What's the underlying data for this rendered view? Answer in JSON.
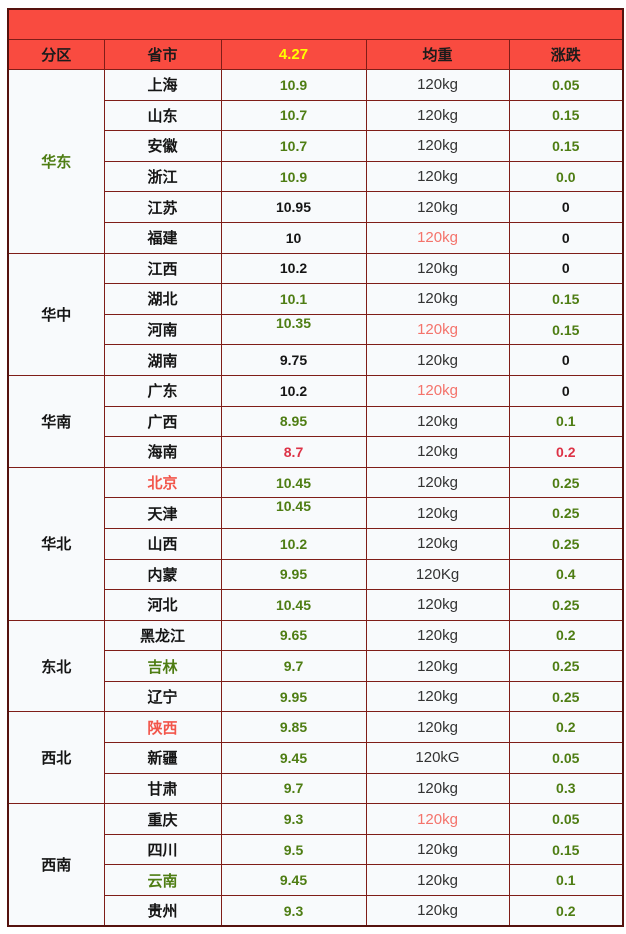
{
  "banner": {
    "text": ""
  },
  "colors": {
    "header_bg": "#f94b40",
    "header_date": "#ffff00",
    "border": "#7f1d18",
    "outer_border": "#55120e",
    "row_bg": "#f8fafc",
    "green": "#4e7d13",
    "black": "#151515",
    "dark": "#333333",
    "red": "#dd3246",
    "tomato": "#f2564b",
    "salmon": "#f4736b"
  },
  "table": {
    "columns": [
      {
        "label": "分区"
      },
      {
        "label": "省市"
      },
      {
        "label": "4.27"
      },
      {
        "label": "均重"
      },
      {
        "label": "涨跌"
      }
    ],
    "groups": [
      {
        "region": "华东",
        "region_color": "green",
        "rows": [
          {
            "province": "上海",
            "province_color": "black",
            "price": "10.9",
            "price_color": "green",
            "weight": "120kg",
            "weight_color": "dark",
            "change": "0.05",
            "change_color": "green"
          },
          {
            "province": "山东",
            "province_color": "black",
            "price": "10.7",
            "price_color": "green",
            "weight": "120kg",
            "weight_color": "dark",
            "change": "0.15",
            "change_color": "green"
          },
          {
            "province": "安徽",
            "province_color": "black",
            "price": "10.7",
            "price_color": "green",
            "weight": "120kg",
            "weight_color": "dark",
            "change": "0.15",
            "change_color": "green"
          },
          {
            "province": "浙江",
            "province_color": "black",
            "price": "10.9",
            "price_color": "green",
            "weight": "120kg",
            "weight_color": "dark",
            "change": "0.0",
            "change_color": "green"
          },
          {
            "province": "江苏",
            "province_color": "black",
            "price": "10.95",
            "price_color": "black",
            "weight": "120kg",
            "weight_color": "dark",
            "change": "0",
            "change_color": "black"
          },
          {
            "province": "福建",
            "province_color": "black",
            "price": "10",
            "price_color": "black",
            "weight": "120kg",
            "weight_color": "salmon",
            "change": "0",
            "change_color": "black"
          }
        ]
      },
      {
        "region": "华中",
        "region_color": "black",
        "rows": [
          {
            "province": "江西",
            "province_color": "black",
            "price": "10.2",
            "price_color": "black",
            "weight": "120kg",
            "weight_color": "dark",
            "change": "0",
            "change_color": "black"
          },
          {
            "province": "湖北",
            "province_color": "black",
            "price": "10.1",
            "price_color": "green",
            "weight": "120kg",
            "weight_color": "dark",
            "change": "0.15",
            "change_color": "green"
          },
          {
            "province": "河南",
            "province_color": "black",
            "price": "10.35",
            "price_color": "green",
            "weight": "120kg",
            "weight_color": "salmon",
            "change": "0.15",
            "change_color": "green",
            "raised": true
          },
          {
            "province": "湖南",
            "province_color": "black",
            "price": "9.75",
            "price_color": "black",
            "weight": "120kg",
            "weight_color": "dark",
            "change": "0",
            "change_color": "black"
          }
        ]
      },
      {
        "region": "华南",
        "region_color": "black",
        "rows": [
          {
            "province": "广东",
            "province_color": "black",
            "price": "10.2",
            "price_color": "black",
            "weight": "120kg",
            "weight_color": "salmon",
            "change": "0",
            "change_color": "black"
          },
          {
            "province": "广西",
            "province_color": "black",
            "price": "8.95",
            "price_color": "green",
            "weight": "120kg",
            "weight_color": "dark",
            "change": "0.1",
            "change_color": "green"
          },
          {
            "province": "海南",
            "province_color": "black",
            "price": "8.7",
            "price_color": "red",
            "weight": "120kg",
            "weight_color": "dark",
            "change": "0.2",
            "change_color": "red"
          }
        ]
      },
      {
        "region": "华北",
        "region_color": "black",
        "rows": [
          {
            "province": "北京",
            "province_color": "tomato",
            "price": "10.45",
            "price_color": "green",
            "weight": "120kg",
            "weight_color": "dark",
            "change": "0.25",
            "change_color": "green"
          },
          {
            "province": "天津",
            "province_color": "black",
            "price": "10.45",
            "price_color": "green",
            "weight": "120kg",
            "weight_color": "dark",
            "change": "0.25",
            "change_color": "green",
            "raised": true
          },
          {
            "province": "山西",
            "province_color": "black",
            "price": "10.2",
            "price_color": "green",
            "weight": "120kg",
            "weight_color": "dark",
            "change": "0.25",
            "change_color": "green"
          },
          {
            "province": "内蒙",
            "province_color": "black",
            "price": "9.95",
            "price_color": "green",
            "weight": "120Kg",
            "weight_color": "dark",
            "change": "0.4",
            "change_color": "green"
          },
          {
            "province": "河北",
            "province_color": "black",
            "price": "10.45",
            "price_color": "green",
            "weight": "120kg",
            "weight_color": "dark",
            "change": "0.25",
            "change_color": "green"
          }
        ]
      },
      {
        "region": "东北",
        "region_color": "black",
        "rows": [
          {
            "province": "黑龙江",
            "province_color": "black",
            "price": "9.65",
            "price_color": "green",
            "weight": "120kg",
            "weight_color": "dark",
            "change": "0.2",
            "change_color": "green"
          },
          {
            "province": "吉林",
            "province_color": "green",
            "price": "9.7",
            "price_color": "green",
            "weight": "120kg",
            "weight_color": "dark",
            "change": "0.25",
            "change_color": "green"
          },
          {
            "province": "辽宁",
            "province_color": "black",
            "price": "9.95",
            "price_color": "green",
            "weight": "120kg",
            "weight_color": "dark",
            "change": "0.25",
            "change_color": "green"
          }
        ]
      },
      {
        "region": "西北",
        "region_color": "black",
        "rows": [
          {
            "province": "陕西",
            "province_color": "tomato",
            "price": "9.85",
            "price_color": "green",
            "weight": "120kg",
            "weight_color": "dark",
            "change": "0.2",
            "change_color": "green"
          },
          {
            "province": "新疆",
            "province_color": "black",
            "price": "9.45",
            "price_color": "green",
            "weight": "120kG",
            "weight_color": "dark",
            "change": "0.05",
            "change_color": "green"
          },
          {
            "province": "甘肃",
            "province_color": "black",
            "price": "9.7",
            "price_color": "green",
            "weight": "120kg",
            "weight_color": "dark",
            "change": "0.3",
            "change_color": "green"
          }
        ]
      },
      {
        "region": "西南",
        "region_color": "black",
        "rows": [
          {
            "province": "重庆",
            "province_color": "black",
            "price": "9.3",
            "price_color": "green",
            "weight": "120kg",
            "weight_color": "salmon",
            "change": "0.05",
            "change_color": "green"
          },
          {
            "province": "四川",
            "province_color": "black",
            "price": "9.5",
            "price_color": "green",
            "weight": "120kg",
            "weight_color": "dark",
            "change": "0.15",
            "change_color": "green"
          },
          {
            "province": "云南",
            "province_color": "green",
            "price": "9.45",
            "price_color": "green",
            "weight": "120kg",
            "weight_color": "dark",
            "change": "0.1",
            "change_color": "green"
          },
          {
            "province": "贵州",
            "province_color": "black",
            "price": "9.3",
            "price_color": "green",
            "weight": "120kg",
            "weight_color": "dark",
            "change": "0.2",
            "change_color": "green"
          }
        ]
      }
    ]
  },
  "chart_data": {
    "type": "table",
    "title": "",
    "columns": [
      "分区",
      "省市",
      "4.27",
      "均重",
      "涨跌"
    ],
    "rows": [
      [
        "华东",
        "上海",
        "10.9",
        "120kg",
        "0.05"
      ],
      [
        "华东",
        "山东",
        "10.7",
        "120kg",
        "0.15"
      ],
      [
        "华东",
        "安徽",
        "10.7",
        "120kg",
        "0.15"
      ],
      [
        "华东",
        "浙江",
        "10.9",
        "120kg",
        "0.0"
      ],
      [
        "华东",
        "江苏",
        "10.95",
        "120kg",
        "0"
      ],
      [
        "华东",
        "福建",
        "10",
        "120kg",
        "0"
      ],
      [
        "华中",
        "江西",
        "10.2",
        "120kg",
        "0"
      ],
      [
        "华中",
        "湖北",
        "10.1",
        "120kg",
        "0.15"
      ],
      [
        "华中",
        "河南",
        "10.35",
        "120kg",
        "0.15"
      ],
      [
        "华中",
        "湖南",
        "9.75",
        "120kg",
        "0"
      ],
      [
        "华南",
        "广东",
        "10.2",
        "120kg",
        "0"
      ],
      [
        "华南",
        "广西",
        "8.95",
        "120kg",
        "0.1"
      ],
      [
        "华南",
        "海南",
        "8.7",
        "120kg",
        "0.2"
      ],
      [
        "华北",
        "北京",
        "10.45",
        "120kg",
        "0.25"
      ],
      [
        "华北",
        "天津",
        "10.45",
        "120kg",
        "0.25"
      ],
      [
        "华北",
        "山西",
        "10.2",
        "120kg",
        "0.25"
      ],
      [
        "华北",
        "内蒙",
        "9.95",
        "120Kg",
        "0.4"
      ],
      [
        "华北",
        "河北",
        "10.45",
        "120kg",
        "0.25"
      ],
      [
        "东北",
        "黑龙江",
        "9.65",
        "120kg",
        "0.2"
      ],
      [
        "东北",
        "吉林",
        "9.7",
        "120kg",
        "0.25"
      ],
      [
        "东北",
        "辽宁",
        "9.95",
        "120kg",
        "0.25"
      ],
      [
        "西北",
        "陕西",
        "9.85",
        "120kg",
        "0.2"
      ],
      [
        "西北",
        "新疆",
        "9.45",
        "120kG",
        "0.05"
      ],
      [
        "西北",
        "甘肃",
        "9.7",
        "120kg",
        "0.3"
      ],
      [
        "西南",
        "重庆",
        "9.3",
        "120kg",
        "0.05"
      ],
      [
        "西南",
        "四川",
        "9.5",
        "120kg",
        "0.15"
      ],
      [
        "西南",
        "云南",
        "9.45",
        "120kg",
        "0.1"
      ],
      [
        "西南",
        "贵州",
        "9.3",
        "120kg",
        "0.2"
      ]
    ]
  }
}
